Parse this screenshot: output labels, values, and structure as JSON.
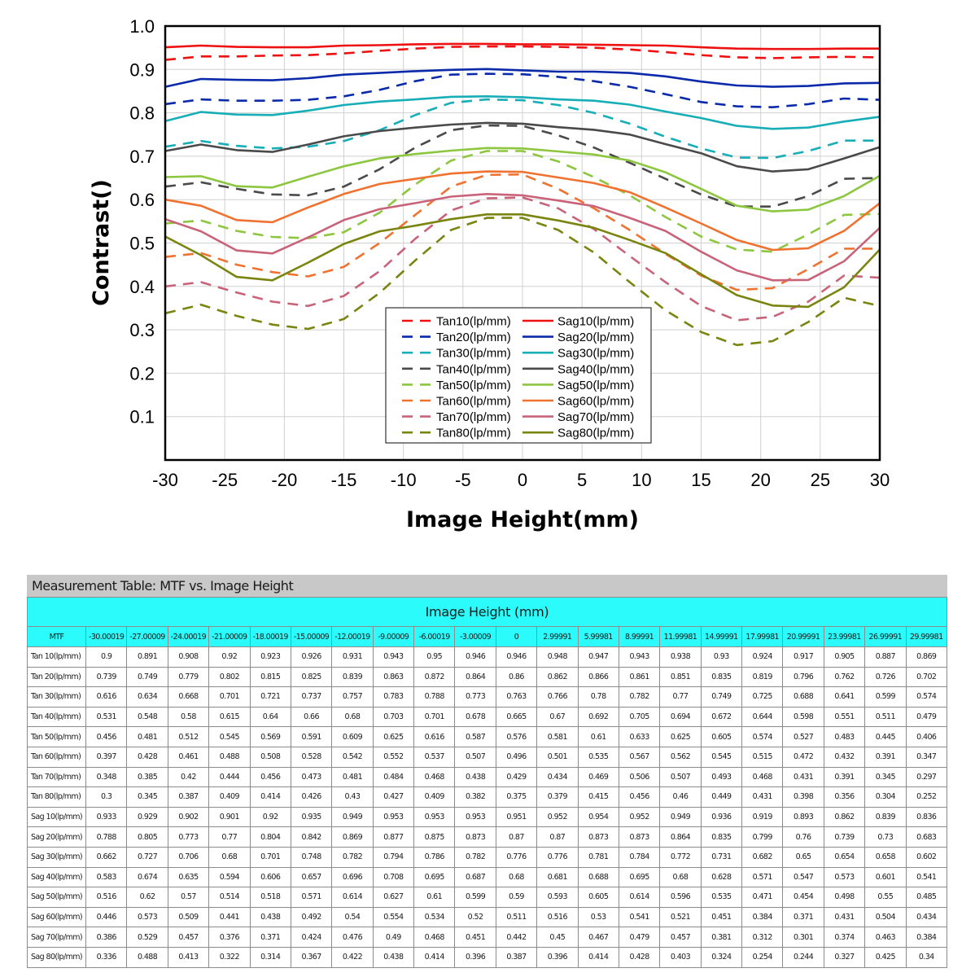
{
  "chart_data": {
    "type": "line",
    "title": "",
    "xlabel": "Image Height(mm)",
    "ylabel": "Contrast()",
    "xlim": [
      -30,
      30
    ],
    "ylim": [
      0,
      1.0
    ],
    "x_ticks": [
      -30,
      -25,
      -20,
      -15,
      -10,
      -5,
      0,
      5,
      10,
      15,
      20,
      25,
      30
    ],
    "y_ticks": [
      0.1,
      0.2,
      0.3,
      0.4,
      0.5,
      0.6,
      0.7,
      0.8,
      0.9,
      1.0
    ],
    "y_tick_labels": [
      "0.1",
      "0.2",
      "0.3",
      "0.4",
      "0.5",
      "0.6",
      "0.7",
      "0.8",
      "0.9",
      "1.0"
    ],
    "grid": true,
    "legend_position": "bottom-center",
    "x": [
      -30,
      -27,
      -24,
      -21,
      -18,
      -15,
      -12,
      -9,
      -6,
      -3,
      0,
      3,
      6,
      9,
      12,
      15,
      18,
      21,
      24,
      27,
      30
    ],
    "series": [
      {
        "name": "Tan10(lp/mm)",
        "color": "#ee1111",
        "dash": true,
        "values": [
          0.922,
          0.93,
          0.93,
          0.932,
          0.933,
          0.937,
          0.943,
          0.948,
          0.952,
          0.953,
          0.953,
          0.952,
          0.95,
          0.946,
          0.94,
          0.933,
          0.928,
          0.926,
          0.928,
          0.929,
          0.928
        ]
      },
      {
        "name": "Tan20(lp/mm)",
        "color": "#0b2aaa",
        "dash": true,
        "values": [
          0.82,
          0.831,
          0.828,
          0.828,
          0.83,
          0.838,
          0.853,
          0.873,
          0.888,
          0.89,
          0.889,
          0.883,
          0.873,
          0.86,
          0.843,
          0.825,
          0.815,
          0.813,
          0.82,
          0.833,
          0.83
        ]
      },
      {
        "name": "Tan30(lp/mm)",
        "color": "#17aeb8",
        "dash": true,
        "values": [
          0.722,
          0.735,
          0.724,
          0.718,
          0.722,
          0.735,
          0.76,
          0.795,
          0.823,
          0.831,
          0.829,
          0.818,
          0.8,
          0.775,
          0.745,
          0.718,
          0.697,
          0.696,
          0.712,
          0.736,
          0.736
        ]
      },
      {
        "name": "Tan40(lp/mm)",
        "color": "#4a4a4a",
        "dash": true,
        "values": [
          0.63,
          0.64,
          0.625,
          0.612,
          0.61,
          0.63,
          0.67,
          0.72,
          0.76,
          0.771,
          0.77,
          0.748,
          0.72,
          0.685,
          0.648,
          0.612,
          0.584,
          0.584,
          0.608,
          0.648,
          0.65
        ]
      },
      {
        "name": "Tan50(lp/mm)",
        "color": "#8dc63f",
        "dash": true,
        "values": [
          0.545,
          0.552,
          0.528,
          0.514,
          0.511,
          0.525,
          0.57,
          0.635,
          0.69,
          0.712,
          0.712,
          0.688,
          0.652,
          0.61,
          0.56,
          0.515,
          0.485,
          0.48,
          0.52,
          0.565,
          0.567
        ]
      },
      {
        "name": "Tan60(lp/mm)",
        "color": "#f07230",
        "dash": true,
        "values": [
          0.468,
          0.477,
          0.45,
          0.433,
          0.423,
          0.445,
          0.5,
          0.565,
          0.63,
          0.657,
          0.658,
          0.625,
          0.58,
          0.53,
          0.475,
          0.425,
          0.392,
          0.396,
          0.44,
          0.487,
          0.487
        ]
      },
      {
        "name": "Tan70(lp/mm)",
        "color": "#c9637a",
        "dash": true,
        "values": [
          0.4,
          0.41,
          0.386,
          0.365,
          0.355,
          0.378,
          0.435,
          0.51,
          0.575,
          0.603,
          0.605,
          0.58,
          0.532,
          0.47,
          0.41,
          0.355,
          0.322,
          0.33,
          0.365,
          0.425,
          0.42
        ]
      },
      {
        "name": "Tan80(lp/mm)",
        "color": "#7a8510",
        "dash": true,
        "values": [
          0.338,
          0.358,
          0.332,
          0.312,
          0.302,
          0.325,
          0.385,
          0.46,
          0.53,
          0.558,
          0.558,
          0.53,
          0.478,
          0.41,
          0.345,
          0.295,
          0.265,
          0.274,
          0.318,
          0.374,
          0.355
        ]
      },
      {
        "name": "Sag10(lp/mm)",
        "color": "#ee1111",
        "dash": false,
        "values": [
          0.951,
          0.955,
          0.952,
          0.951,
          0.951,
          0.955,
          0.956,
          0.958,
          0.959,
          0.959,
          0.958,
          0.958,
          0.957,
          0.956,
          0.955,
          0.951,
          0.948,
          0.947,
          0.947,
          0.948,
          0.948
        ]
      },
      {
        "name": "Sag20(lp/mm)",
        "color": "#0b2aaa",
        "dash": false,
        "values": [
          0.86,
          0.878,
          0.876,
          0.875,
          0.88,
          0.888,
          0.892,
          0.896,
          0.899,
          0.901,
          0.898,
          0.895,
          0.895,
          0.892,
          0.884,
          0.872,
          0.863,
          0.86,
          0.862,
          0.868,
          0.869
        ]
      },
      {
        "name": "Sag30(lp/mm)",
        "color": "#17aeb8",
        "dash": false,
        "values": [
          0.781,
          0.802,
          0.796,
          0.795,
          0.805,
          0.818,
          0.826,
          0.831,
          0.837,
          0.838,
          0.836,
          0.831,
          0.828,
          0.819,
          0.803,
          0.788,
          0.77,
          0.763,
          0.766,
          0.78,
          0.791
        ]
      },
      {
        "name": "Sag40(lp/mm)",
        "color": "#4a4a4a",
        "dash": false,
        "values": [
          0.712,
          0.727,
          0.714,
          0.71,
          0.727,
          0.746,
          0.758,
          0.766,
          0.773,
          0.777,
          0.775,
          0.767,
          0.761,
          0.75,
          0.728,
          0.707,
          0.677,
          0.665,
          0.67,
          0.695,
          0.721
        ]
      },
      {
        "name": "Sag50(lp/mm)",
        "color": "#8dc63f",
        "dash": false,
        "values": [
          0.652,
          0.654,
          0.631,
          0.628,
          0.653,
          0.677,
          0.695,
          0.705,
          0.713,
          0.719,
          0.718,
          0.711,
          0.704,
          0.69,
          0.663,
          0.625,
          0.586,
          0.573,
          0.577,
          0.608,
          0.655
        ]
      },
      {
        "name": "Sag60(lp/mm)",
        "color": "#f07230",
        "dash": false,
        "values": [
          0.6,
          0.586,
          0.553,
          0.548,
          0.582,
          0.613,
          0.636,
          0.648,
          0.66,
          0.665,
          0.664,
          0.651,
          0.638,
          0.617,
          0.582,
          0.545,
          0.507,
          0.484,
          0.488,
          0.528,
          0.592
        ]
      },
      {
        "name": "Sag70(lp/mm)",
        "color": "#c9637a",
        "dash": false,
        "values": [
          0.555,
          0.527,
          0.483,
          0.476,
          0.513,
          0.553,
          0.578,
          0.592,
          0.607,
          0.613,
          0.61,
          0.598,
          0.585,
          0.558,
          0.528,
          0.48,
          0.437,
          0.414,
          0.415,
          0.458,
          0.535
        ]
      },
      {
        "name": "Sag80(lp/mm)",
        "color": "#7a8510",
        "dash": false,
        "values": [
          0.515,
          0.472,
          0.422,
          0.414,
          0.455,
          0.498,
          0.527,
          0.54,
          0.555,
          0.566,
          0.566,
          0.552,
          0.535,
          0.507,
          0.477,
          0.428,
          0.38,
          0.356,
          0.353,
          0.398,
          0.485
        ]
      }
    ],
    "legend_rows": [
      [
        "Tan10(lp/mm)",
        "Sag10(lp/mm)"
      ],
      [
        "Tan20(lp/mm)",
        "Sag20(lp/mm)"
      ],
      [
        "Tan30(lp/mm)",
        "Sag30(lp/mm)"
      ],
      [
        "Tan40(lp/mm)",
        "Sag40(lp/mm)"
      ],
      [
        "Tan50(lp/mm)",
        "Sag50(lp/mm)"
      ],
      [
        "Tan60(lp/mm)",
        "Sag60(lp/mm)"
      ],
      [
        "Tan70(lp/mm)",
        "Sag70(lp/mm)"
      ],
      [
        "Tan80(lp/mm)",
        "Sag80(lp/mm)"
      ]
    ]
  },
  "table": {
    "title": "Measurement Table: MTF vs. Image Height",
    "group_header": "Image Height (mm)",
    "corner_label": "MTF",
    "columns": [
      "-30.00019",
      "-27.00009",
      "-24.00019",
      "-21.00009",
      "-18.00019",
      "-15.00009",
      "-12.00019",
      "-9.00009",
      "-6.00019",
      "-3.00009",
      "0",
      "2.99991",
      "5.99981",
      "8.99991",
      "11.99981",
      "14.99991",
      "17.99981",
      "20.99991",
      "23.99981",
      "26.99991",
      "29.99981"
    ],
    "rows": [
      {
        "label": "Tan 10(lp/mm)",
        "values": [
          "0.9",
          "0.891",
          "0.908",
          "0.92",
          "0.923",
          "0.926",
          "0.931",
          "0.943",
          "0.95",
          "0.946",
          "0.946",
          "0.948",
          "0.947",
          "0.943",
          "0.938",
          "0.93",
          "0.924",
          "0.917",
          "0.905",
          "0.887",
          "0.869"
        ]
      },
      {
        "label": "Tan 20(lp/mm)",
        "values": [
          "0.739",
          "0.749",
          "0.779",
          "0.802",
          "0.815",
          "0.825",
          "0.839",
          "0.863",
          "0.872",
          "0.864",
          "0.86",
          "0.862",
          "0.866",
          "0.861",
          "0.851",
          "0.835",
          "0.819",
          "0.796",
          "0.762",
          "0.726",
          "0.702"
        ]
      },
      {
        "label": "Tan 30(lp/mm)",
        "values": [
          "0.616",
          "0.634",
          "0.668",
          "0.701",
          "0.721",
          "0.737",
          "0.757",
          "0.783",
          "0.788",
          "0.773",
          "0.763",
          "0.766",
          "0.78",
          "0.782",
          "0.77",
          "0.749",
          "0.725",
          "0.688",
          "0.641",
          "0.599",
          "0.574"
        ]
      },
      {
        "label": "Tan 40(lp/mm)",
        "values": [
          "0.531",
          "0.548",
          "0.58",
          "0.615",
          "0.64",
          "0.66",
          "0.68",
          "0.703",
          "0.701",
          "0.678",
          "0.665",
          "0.67",
          "0.692",
          "0.705",
          "0.694",
          "0.672",
          "0.644",
          "0.598",
          "0.551",
          "0.511",
          "0.479"
        ]
      },
      {
        "label": "Tan 50(lp/mm)",
        "values": [
          "0.456",
          "0.481",
          "0.512",
          "0.545",
          "0.569",
          "0.591",
          "0.609",
          "0.625",
          "0.616",
          "0.587",
          "0.576",
          "0.581",
          "0.61",
          "0.633",
          "0.625",
          "0.605",
          "0.574",
          "0.527",
          "0.483",
          "0.445",
          "0.406"
        ]
      },
      {
        "label": "Tan 60(lp/mm)",
        "values": [
          "0.397",
          "0.428",
          "0.461",
          "0.488",
          "0.508",
          "0.528",
          "0.542",
          "0.552",
          "0.537",
          "0.507",
          "0.496",
          "0.501",
          "0.535",
          "0.567",
          "0.562",
          "0.545",
          "0.515",
          "0.472",
          "0.432",
          "0.391",
          "0.347"
        ]
      },
      {
        "label": "Tan 70(lp/mm)",
        "values": [
          "0.348",
          "0.385",
          "0.42",
          "0.444",
          "0.456",
          "0.473",
          "0.481",
          "0.484",
          "0.468",
          "0.438",
          "0.429",
          "0.434",
          "0.469",
          "0.506",
          "0.507",
          "0.493",
          "0.468",
          "0.431",
          "0.391",
          "0.345",
          "0.297"
        ]
      },
      {
        "label": "Tan 80(lp/mm)",
        "values": [
          "0.3",
          "0.345",
          "0.387",
          "0.409",
          "0.414",
          "0.426",
          "0.43",
          "0.427",
          "0.409",
          "0.382",
          "0.375",
          "0.379",
          "0.415",
          "0.456",
          "0.46",
          "0.449",
          "0.431",
          "0.398",
          "0.356",
          "0.304",
          "0.252"
        ]
      },
      {
        "label": "Sag 10(lp/mm)",
        "values": [
          "0.933",
          "0.929",
          "0.902",
          "0.901",
          "0.92",
          "0.935",
          "0.949",
          "0.953",
          "0.953",
          "0.953",
          "0.951",
          "0.952",
          "0.954",
          "0.952",
          "0.949",
          "0.936",
          "0.919",
          "0.893",
          "0.862",
          "0.839",
          "0.836"
        ]
      },
      {
        "label": "Sag 20(lp/mm)",
        "values": [
          "0.788",
          "0.805",
          "0.773",
          "0.77",
          "0.804",
          "0.842",
          "0.869",
          "0.877",
          "0.875",
          "0.873",
          "0.87",
          "0.87",
          "0.873",
          "0.873",
          "0.864",
          "0.835",
          "0.799",
          "0.76",
          "0.739",
          "0.73",
          "0.683"
        ]
      },
      {
        "label": "Sag 30(lp/mm)",
        "values": [
          "0.662",
          "0.727",
          "0.706",
          "0.68",
          "0.701",
          "0.748",
          "0.782",
          "0.794",
          "0.786",
          "0.782",
          "0.776",
          "0.776",
          "0.781",
          "0.784",
          "0.772",
          "0.731",
          "0.682",
          "0.65",
          "0.654",
          "0.658",
          "0.602"
        ]
      },
      {
        "label": "Sag 40(lp/mm)",
        "values": [
          "0.583",
          "0.674",
          "0.635",
          "0.594",
          "0.606",
          "0.657",
          "0.696",
          "0.708",
          "0.695",
          "0.687",
          "0.68",
          "0.681",
          "0.688",
          "0.695",
          "0.68",
          "0.628",
          "0.571",
          "0.547",
          "0.573",
          "0.601",
          "0.541"
        ]
      },
      {
        "label": "Sag 50(lp/mm)",
        "values": [
          "0.516",
          "0.62",
          "0.57",
          "0.514",
          "0.518",
          "0.571",
          "0.614",
          "0.627",
          "0.61",
          "0.599",
          "0.59",
          "0.593",
          "0.605",
          "0.614",
          "0.596",
          "0.535",
          "0.471",
          "0.454",
          "0.498",
          "0.55",
          "0.485"
        ]
      },
      {
        "label": "Sag 60(lp/mm)",
        "values": [
          "0.446",
          "0.573",
          "0.509",
          "0.441",
          "0.438",
          "0.492",
          "0.54",
          "0.554",
          "0.534",
          "0.52",
          "0.511",
          "0.516",
          "0.53",
          "0.541",
          "0.521",
          "0.451",
          "0.384",
          "0.371",
          "0.431",
          "0.504",
          "0.434"
        ]
      },
      {
        "label": "Sag 70(lp/mm)",
        "values": [
          "0.386",
          "0.529",
          "0.457",
          "0.376",
          "0.371",
          "0.424",
          "0.476",
          "0.49",
          "0.468",
          "0.451",
          "0.442",
          "0.45",
          "0.467",
          "0.479",
          "0.457",
          "0.381",
          "0.312",
          "0.301",
          "0.374",
          "0.463",
          "0.384"
        ]
      },
      {
        "label": "Sag 80(lp/mm)",
        "values": [
          "0.336",
          "0.488",
          "0.413",
          "0.322",
          "0.314",
          "0.367",
          "0.422",
          "0.438",
          "0.414",
          "0.396",
          "0.387",
          "0.396",
          "0.414",
          "0.428",
          "0.403",
          "0.324",
          "0.254",
          "0.244",
          "0.327",
          "0.425",
          "0.34"
        ]
      }
    ],
    "colors": {
      "title_bg": "#c8c8c8",
      "header_bg": "#2bfbfb",
      "border": "#8c8c8c"
    }
  }
}
